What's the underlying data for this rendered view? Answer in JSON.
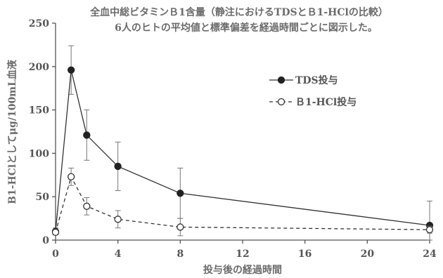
{
  "chart_data": {
    "type": "line",
    "title": "全血中総ビタミンＢ1含量（静注におけるTDSとＢ1-HClの比較）",
    "subtitle": "6人のヒトの平均値と標準偏差を経過時間ごとに図示した。",
    "xlabel": "投与後の経過時間",
    "ylabel": "B1-HClとしてμg/100mL血液",
    "xlim": [
      0,
      24
    ],
    "ylim": [
      0,
      250
    ],
    "xticks": [
      "0",
      "4",
      "8",
      "12",
      "16",
      "20",
      "24"
    ],
    "xtick_values": [
      0,
      4,
      8,
      12,
      16,
      20,
      24
    ],
    "yticks": [
      "0",
      "50",
      "100",
      "150",
      "200",
      "250"
    ],
    "ytick_values": [
      0,
      50,
      100,
      150,
      200,
      250
    ],
    "grid": false,
    "legend_position": "top-right",
    "series": [
      {
        "name": "TDS投与",
        "marker": "filled-circle",
        "line_style": "solid",
        "color": "#333333",
        "x": [
          0,
          1,
          2,
          4,
          8,
          24
        ],
        "y": [
          10,
          196,
          121,
          85,
          54,
          17
        ],
        "err": [
          4,
          28,
          29,
          28,
          29,
          28
        ]
      },
      {
        "name": "Ｂ1-HCl投与",
        "marker": "open-circle",
        "line_style": "dashed",
        "color": "#333333",
        "x": [
          0,
          1,
          2,
          4,
          8,
          24
        ],
        "y": [
          9,
          73,
          39,
          24,
          15,
          12
        ],
        "err": [
          3,
          10,
          10,
          10,
          10,
          4
        ]
      }
    ]
  }
}
